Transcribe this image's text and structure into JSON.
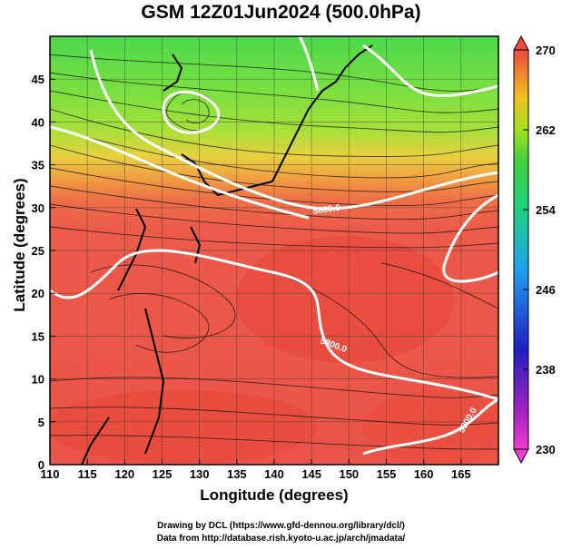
{
  "title": "GSM 12Z01Jun2024 (500.0hPa)",
  "xlabel": "Longitude (degrees)",
  "ylabel": "Latitude  (degrees)",
  "credit_line1": "Drawing by DCL (https://www.gfd-dennou.org/library/dcl/)",
  "credit_line2": "Data from http://database.rish.kyoto-u.ac.jp/arch/jmadata/",
  "x_ticks": [
    "110",
    "115",
    "120",
    "125",
    "130",
    "135",
    "140",
    "145",
    "150",
    "155",
    "160",
    "165"
  ],
  "y_ticks": [
    "0",
    "5",
    "10",
    "15",
    "20",
    "25",
    "30",
    "35",
    "40",
    "45"
  ],
  "colorbar_labels": [
    "270",
    "262",
    "254",
    "246",
    "238",
    "230"
  ],
  "contour_labels": [
    "5800.0",
    "5800.0",
    "5900.0"
  ],
  "chart_data": {
    "type": "heatmap",
    "title": "GSM 12Z01Jun2024 (500.0hPa)",
    "xlabel": "Longitude (degrees)",
    "ylabel": "Latitude  (degrees)",
    "xlim": [
      110,
      170
    ],
    "ylim": [
      0,
      50
    ],
    "color_range": [
      230,
      270
    ],
    "colorbar_ticks": [
      230,
      238,
      246,
      254,
      262,
      270
    ],
    "field_zones": [
      {
        "lat_from": 44,
        "lat_to": 50,
        "value": 256
      },
      {
        "lat_from": 38,
        "lat_to": 44,
        "value": 258
      },
      {
        "lat_from": 34,
        "lat_to": 38,
        "value": 263
      },
      {
        "lat_from": 28,
        "lat_to": 34,
        "value": 266
      },
      {
        "lat_from": 0,
        "lat_to": 28,
        "value": 268
      }
    ],
    "contours": [
      {
        "label": "5800.0",
        "lon": 147,
        "lat": 31.5
      },
      {
        "label": "5800.0",
        "lon": 152,
        "lat": 14.5
      },
      {
        "label": "5900.0",
        "lon": 164,
        "lat": 5
      }
    ]
  }
}
